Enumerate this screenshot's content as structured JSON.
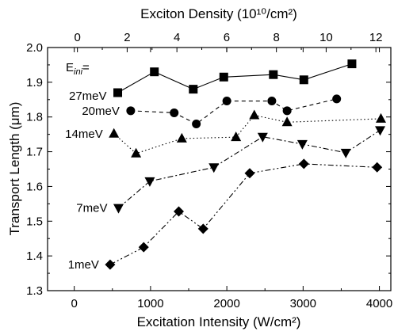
{
  "chart_data": {
    "type": "line",
    "title": "",
    "xlabel": "Excitation Intensity (W/cm²)",
    "ylabel": "Transport Length (μm)",
    "x2label": "Exciton Density (10¹⁰/cm²)",
    "xlim": [
      -350,
      4150
    ],
    "ylim": [
      1.3,
      2.0
    ],
    "x2lim": [
      -1.2,
      12.6
    ],
    "xticks": [
      0,
      1000,
      2000,
      3000,
      4000
    ],
    "xtick_labels": [
      "0",
      "1000",
      "2000",
      "3000",
      "4000"
    ],
    "x2ticks": [
      0,
      2,
      4,
      6,
      8,
      10,
      12
    ],
    "x2tick_labels": [
      "0",
      "2",
      "4",
      "6",
      "8",
      "10",
      "12"
    ],
    "yticks": [
      1.3,
      1.4,
      1.5,
      1.6,
      1.7,
      1.8,
      1.9,
      2.0
    ],
    "ytick_labels": [
      "1.3",
      "1.4",
      "1.5",
      "1.6",
      "1.7",
      "1.8",
      "1.9",
      "2.0"
    ],
    "grid": false,
    "legend_heading": "E_ini=",
    "series": [
      {
        "name": "27meV",
        "marker": "square",
        "dash": "solid",
        "x": [
          570,
          1050,
          1560,
          1960,
          2610,
          3010,
          3640
        ],
        "y": [
          1.87,
          1.93,
          1.88,
          1.915,
          1.922,
          1.907,
          1.953
        ]
      },
      {
        "name": "20meV",
        "marker": "circle",
        "dash": "dashed",
        "x": [
          740,
          1310,
          1600,
          2000,
          2590,
          2790,
          3440
        ],
        "y": [
          1.818,
          1.812,
          1.78,
          1.846,
          1.846,
          1.818,
          1.852
        ]
      },
      {
        "name": "14meV",
        "marker": "triangle-up",
        "dash": "dotted",
        "x": [
          520,
          810,
          1410,
          2120,
          2360,
          2790,
          4020
        ],
        "y": [
          1.752,
          1.695,
          1.738,
          1.742,
          1.805,
          1.785,
          1.795
        ]
      },
      {
        "name": "7meV",
        "marker": "triangle-down",
        "dash": "dashdot",
        "x": [
          580,
          990,
          1830,
          2470,
          2990,
          3560,
          4010
        ],
        "y": [
          1.538,
          1.615,
          1.655,
          1.743,
          1.722,
          1.697,
          1.762
        ]
      },
      {
        "name": "1meV",
        "marker": "diamond",
        "dash": "dashdotdot",
        "x": [
          470,
          910,
          1370,
          1690,
          2300,
          3010,
          3970
        ],
        "y": [
          1.375,
          1.425,
          1.528,
          1.478,
          1.638,
          1.665,
          1.655
        ]
      }
    ]
  }
}
